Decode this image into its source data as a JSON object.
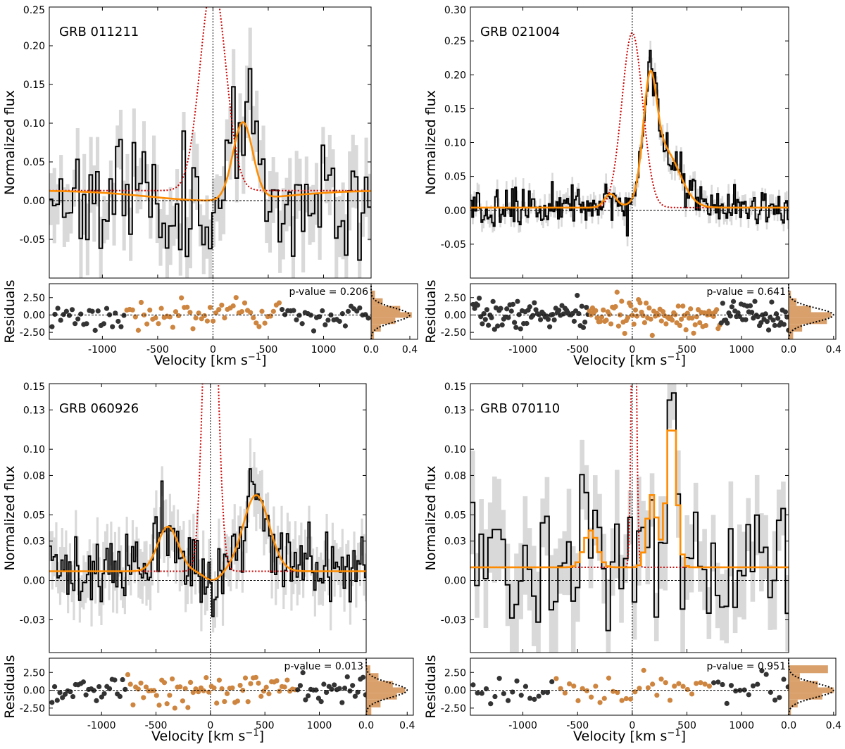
{
  "figure": {
    "axis_labels": {
      "flux": "Normalized flux",
      "residuals": "Residuals",
      "velocity_main": "Velocity [km s",
      "velocity_sup": "−1",
      "velocity_close": "]"
    }
  },
  "colors": {
    "data": "#000000",
    "error_band": "#d9d9d9",
    "model": "#ff8c00",
    "intrinsic": "#cc0000",
    "resid_in": "#cd853f",
    "resid_out": "#333333",
    "hist": "#d9a06b"
  },
  "chart_data": [
    {
      "type": "line",
      "title": "GRB 011211",
      "pvalue_label": "p-value = 0.206",
      "xlabel": "Velocity [km s^-1]",
      "ylabel": "Normalized flux",
      "xlim": [
        -1480,
        1430
      ],
      "ylim": [
        -0.1,
        0.25
      ],
      "yticks": [
        -0.05,
        0.0,
        0.05,
        0.1,
        0.15,
        0.2,
        0.25
      ],
      "ytick_labels": [
        "-0.05",
        "0.00",
        "0.05",
        "0.10",
        "0.15",
        "0.20",
        "0.25"
      ],
      "xticks": [
        -1000,
        -500,
        0,
        500,
        1000
      ],
      "xtick_labels": [
        "-1000",
        "-500",
        "0",
        "500",
        "1000"
      ],
      "resid_ylim": [
        -3.5,
        4.5
      ],
      "resid_yticks": [
        -2.5,
        0.0,
        2.5
      ],
      "resid_ytick_labels": [
        "-2.50",
        "0.00",
        "2.50"
      ],
      "hist_xlim": [
        0.0,
        0.48
      ],
      "hist_xticks": [
        0.0,
        0.4
      ],
      "hist_xtick_labels": [
        "0.0",
        "0.4"
      ],
      "continuum": 0.013,
      "model_window": [
        -780,
        620
      ],
      "intrinsic": {
        "amp": 0.27,
        "sigma": 115,
        "center": 0
      },
      "emission_components": [
        {
          "center": 270,
          "amp": 0.1,
          "sigma": 90
        }
      ],
      "absorption": {
        "center": 10,
        "width": 820,
        "depth": 0.013
      },
      "model_step": false,
      "data": {
        "step": 30,
        "noise": 0.045,
        "err": 0.038,
        "seed": 11
      },
      "resid_step": 26,
      "resid_seed": 3,
      "hist_bins": [
        0.03,
        0.1,
        0.25,
        0.42,
        0.3,
        0.12,
        0.04
      ]
    },
    {
      "type": "line",
      "title": "GRB 021004",
      "pvalue_label": "p-value = 0.641",
      "xlabel": "Velocity [km s^-1]",
      "ylabel": "Normalized flux",
      "xlim": [
        -1480,
        1430
      ],
      "ylim": [
        -0.1,
        0.3
      ],
      "yticks": [
        -0.05,
        0.0,
        0.05,
        0.1,
        0.15,
        0.2,
        0.25,
        0.3
      ],
      "ytick_labels": [
        "-0.05",
        "0.00",
        "0.05",
        "0.10",
        "0.15",
        "0.20",
        "0.25",
        "0.30"
      ],
      "xticks": [
        -1000,
        -500,
        0,
        500,
        1000
      ],
      "xtick_labels": [
        "-1000",
        "-500",
        "0",
        "500",
        "1000"
      ],
      "resid_ylim": [
        -3.5,
        4.5
      ],
      "resid_yticks": [
        -2.5,
        0.0,
        2.5
      ],
      "resid_ytick_labels": [
        "-2.50",
        "0.00",
        "2.50"
      ],
      "hist_xlim": [
        0.0,
        0.42
      ],
      "hist_xticks": [
        0.0,
        0.4
      ],
      "hist_xtick_labels": [
        "0.0",
        "0.4"
      ],
      "continuum": 0.004,
      "model_window": [
        -400,
        800
      ],
      "intrinsic": {
        "amp": 0.258,
        "sigma": 95,
        "center": 0
      },
      "emission_components": [
        {
          "center": 160,
          "amp": 0.145,
          "sigma": 60
        },
        {
          "center": 290,
          "amp": 0.085,
          "sigma": 140
        },
        {
          "center": -200,
          "amp": 0.02,
          "sigma": 55
        }
      ],
      "absorption": null,
      "model_step": false,
      "data": {
        "step": 14,
        "noise": 0.018,
        "err": 0.012,
        "seed": 21
      },
      "resid_step": 14,
      "resid_seed": 7,
      "hist_bins": [
        0.04,
        0.12,
        0.34,
        0.38,
        0.2,
        0.07,
        0.02
      ]
    },
    {
      "type": "line",
      "title": "GRB 060926",
      "pvalue_label": "p-value = 0.013",
      "xlabel": "Velocity [km s^-1]",
      "ylabel": "Normalized flux",
      "xlim": [
        -1480,
        1430
      ],
      "ylim": [
        -0.055,
        0.15
      ],
      "yticks": [
        -0.03,
        0.0,
        0.03,
        0.05,
        0.08,
        0.1,
        0.13,
        0.15
      ],
      "ytick_labels": [
        "-0.03",
        "0.00",
        "0.03",
        "0.05",
        "0.08",
        "0.10",
        "0.13",
        "0.15"
      ],
      "xticks": [
        -1000,
        -500,
        0,
        500,
        1000
      ],
      "xtick_labels": [
        "-1000",
        "-500",
        "0",
        "500",
        "1000"
      ],
      "resid_ylim": [
        -3.5,
        4.5
      ],
      "resid_yticks": [
        -2.5,
        0.0,
        2.5
      ],
      "resid_ytick_labels": [
        "-2.50",
        "0.00",
        "2.50"
      ],
      "hist_xlim": [
        0.0,
        0.46
      ],
      "hist_xticks": [
        0.0,
        0.4
      ],
      "hist_xtick_labels": [
        "0.0",
        "0.4"
      ],
      "continuum": 0.007,
      "model_window": [
        -780,
        780
      ],
      "intrinsic": {
        "amp": 0.3,
        "sigma": 60,
        "center": 0
      },
      "emission_components": [
        {
          "center": -390,
          "amp": 0.034,
          "sigma": 95
        },
        {
          "center": 420,
          "amp": 0.058,
          "sigma": 120
        }
      ],
      "absorption": {
        "center": 20,
        "width": 110,
        "depth": 0.007
      },
      "model_step": false,
      "data": {
        "step": 18,
        "noise": 0.016,
        "err": 0.018,
        "seed": 31
      },
      "resid_step": 24,
      "resid_seed": 13,
      "hist_bins": [
        0.05,
        0.14,
        0.3,
        0.38,
        0.26,
        0.12,
        0.04
      ]
    },
    {
      "type": "line",
      "title": "GRB 070110",
      "pvalue_label": "p-value = 0.951",
      "xlabel": "Velocity [km s^-1]",
      "ylabel": "Normalized flux",
      "xlim": [
        -1480,
        1430
      ],
      "ylim": [
        -0.055,
        0.15
      ],
      "yticks": [
        -0.03,
        0.0,
        0.03,
        0.05,
        0.08,
        0.1,
        0.13,
        0.15
      ],
      "ytick_labels": [
        "-0.03",
        "0.00",
        "0.03",
        "0.05",
        "0.08",
        "0.10",
        "0.13",
        "0.15"
      ],
      "xticks": [
        -1000,
        -500,
        0,
        500,
        1000
      ],
      "xtick_labels": [
        "-1000",
        "-500",
        "0",
        "500",
        "1000"
      ],
      "resid_ylim": [
        -3.5,
        4.5
      ],
      "resid_yticks": [
        -2.5,
        0.0,
        2.5
      ],
      "resid_ytick_labels": [
        "-2.50",
        "0.00",
        "2.50"
      ],
      "hist_xlim": [
        0.0,
        0.42
      ],
      "hist_xticks": [
        0.0,
        0.4
      ],
      "hist_xtick_labels": [
        "0.0",
        "0.4"
      ],
      "continuum": 0.01,
      "model_window": [
        -700,
        720
      ],
      "intrinsic": {
        "amp": 0.3,
        "sigma": 20,
        "center": 15
      },
      "emission_components": [
        {
          "center": -380,
          "amp": 0.028,
          "sigma": 60
        },
        {
          "center": 180,
          "amp": 0.055,
          "sigma": 45
        },
        {
          "center": 360,
          "amp": 0.115,
          "sigma": 45
        }
      ],
      "absorption": null,
      "model_step": true,
      "data": {
        "step": 40,
        "noise": 0.035,
        "err": 0.03,
        "seed": 41
      },
      "resid_step": 40,
      "resid_seed": 17,
      "hist_bins": [
        0.02,
        0.08,
        0.3,
        0.4,
        0.26,
        0.1,
        0.35
      ]
    }
  ]
}
